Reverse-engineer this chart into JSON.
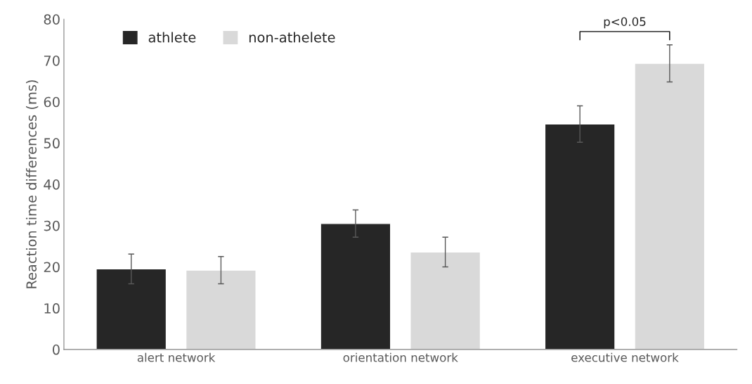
{
  "chart_data": {
    "type": "bar",
    "ylabel": "Reaction time differences (ms)",
    "categories": [
      "alert network",
      "orientation network",
      "executive network"
    ],
    "series": [
      {
        "name": "athlete",
        "color": "#262626",
        "values": [
          19.5,
          30.5,
          54.6
        ],
        "errors": [
          3.6,
          3.3,
          4.4
        ]
      },
      {
        "name": "non-athelete",
        "color": "#d9d9d9",
        "values": [
          19.2,
          23.6,
          69.3
        ],
        "errors": [
          3.3,
          3.6,
          4.5
        ]
      }
    ],
    "ylim": [
      0,
      80
    ],
    "yticks": [
      0,
      10,
      20,
      30,
      40,
      50,
      60,
      70,
      80
    ],
    "grid": false,
    "legend": "top left",
    "annotations": [
      "p<0.05"
    ]
  }
}
